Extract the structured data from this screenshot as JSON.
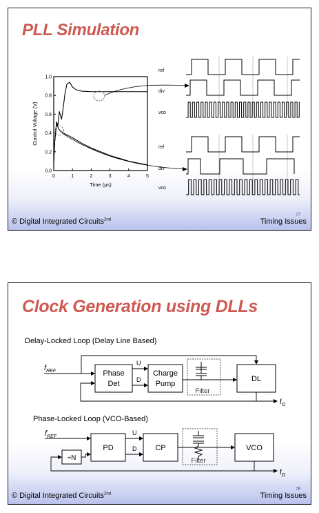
{
  "slide1": {
    "title": "PLL Simulation",
    "footer_left": "© Digital Integrated Circuits",
    "footer_left_sup": "2nd",
    "footer_right": "Timing Issues",
    "page_number": "77",
    "chart_data": {
      "type": "line",
      "xlabel": "Time (μs)",
      "ylabel": "Control Voltage (V)",
      "xlim": [
        0,
        5
      ],
      "ylim": [
        0,
        1.0
      ],
      "xticks": [
        "0",
        "1",
        "2",
        "3",
        "4",
        "5"
      ],
      "yticks": [
        "0.0",
        "0.2",
        "0.4",
        "0.6",
        "0.8",
        "1.0"
      ],
      "series": [
        {
          "x": [
            0,
            0.05,
            0.15,
            0.22,
            0.3,
            0.36,
            0.42,
            0.5,
            0.6,
            0.7,
            0.85,
            1.0,
            1.2,
            1.5,
            2.0,
            2.5,
            3.0,
            4.0,
            5.0
          ],
          "values": [
            0.1,
            0.3,
            0.52,
            0.48,
            0.63,
            0.58,
            0.55,
            0.66,
            0.82,
            0.92,
            0.94,
            0.89,
            0.86,
            0.845,
            0.84,
            0.84,
            0.84,
            0.84,
            0.84
          ]
        },
        {
          "x": [
            0,
            0.05,
            0.15,
            0.25,
            0.35,
            0.5,
            0.8,
            1.0,
            1.5,
            2.0,
            2.5,
            3.0,
            3.5,
            4.0,
            4.5,
            5.0
          ],
          "values": [
            0.08,
            0.3,
            0.5,
            0.45,
            0.42,
            0.4,
            0.37,
            0.35,
            0.29,
            0.24,
            0.2,
            0.16,
            0.13,
            0.1,
            0.08,
            0.06
          ]
        }
      ]
    },
    "wave_labels": [
      "ref",
      "div",
      "vco",
      "ref",
      "div",
      "vco"
    ]
  },
  "slide2": {
    "title": "Clock Generation using DLLs",
    "dll_caption": "Delay-Locked Loop (Delay Line Based)",
    "pll_caption": "Phase-Locked Loop (VCO-Based)",
    "fref": "f",
    "fref_sub": "REF",
    "fo": "f",
    "fo_sub": "O",
    "dll": {
      "phase_det": [
        "Phase",
        "Det"
      ],
      "charge_pump": [
        "Charge",
        "Pump"
      ],
      "filter": "Filter",
      "dl": "DL",
      "u": "U",
      "d": "D"
    },
    "pll": {
      "pd": "PD",
      "cp": "CP",
      "filter": "Filter",
      "vco": "VCO",
      "div": "÷N",
      "u": "U",
      "d": "D"
    },
    "footer_left": "© Digital Integrated Circuits",
    "footer_left_sup": "2nd",
    "footer_right": "Timing Issues",
    "page_number": "78"
  }
}
